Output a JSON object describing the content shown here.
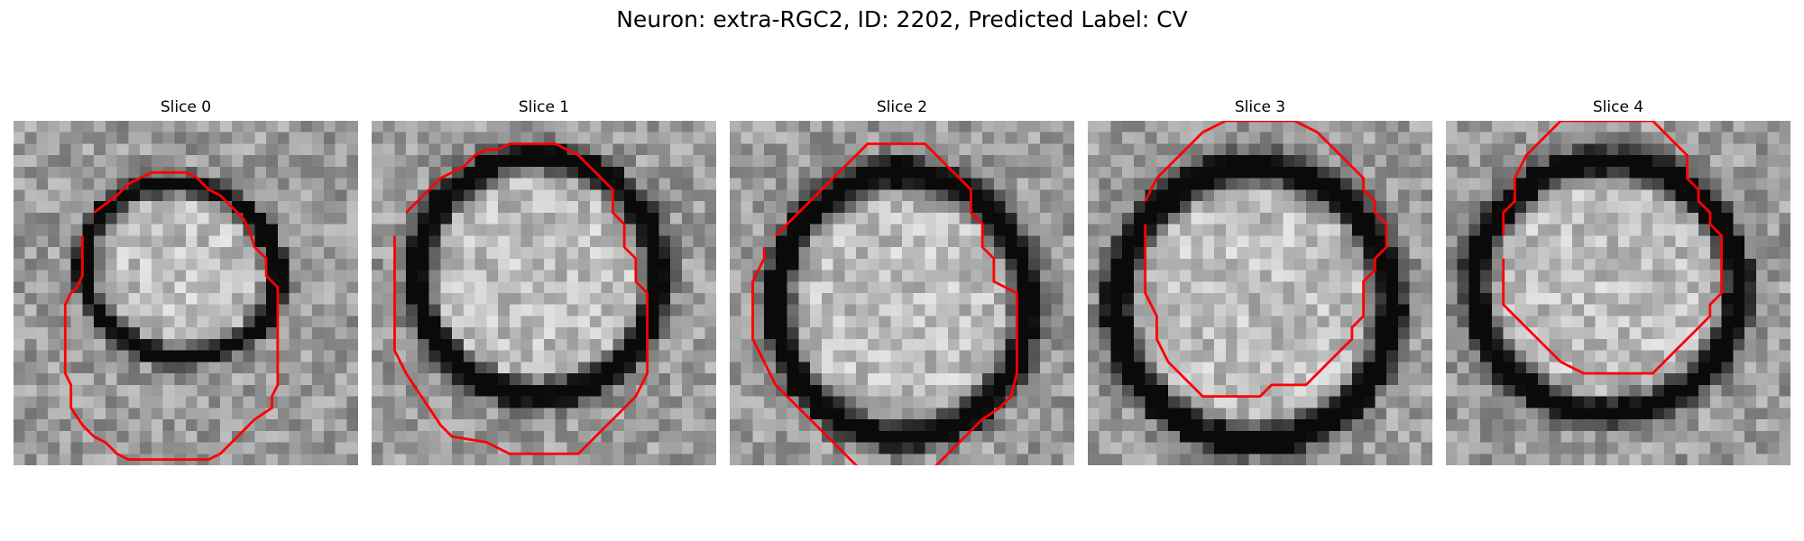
{
  "figure": {
    "title": "Neuron: extra-RGC2, ID: 2202, Predicted Label: CV"
  },
  "panels": [
    {
      "title": "Slice 0",
      "ring": {
        "cx": 14.5,
        "cy": 13.0,
        "rx": 8.5,
        "ry": 7.5,
        "rot": 15
      },
      "contour": [
        [
          7,
          8
        ],
        [
          9,
          6.5
        ],
        [
          10,
          5.5
        ],
        [
          11,
          5
        ],
        [
          12,
          4.5
        ],
        [
          15,
          4.5
        ],
        [
          16,
          5
        ],
        [
          17,
          6
        ],
        [
          18,
          6.5
        ],
        [
          19,
          7.5
        ],
        [
          20,
          8.5
        ],
        [
          20.5,
          9.5
        ],
        [
          21,
          11
        ],
        [
          22,
          12
        ],
        [
          22,
          13.5
        ],
        [
          23,
          14.5
        ],
        [
          23,
          23
        ],
        [
          22.5,
          24
        ],
        [
          22.5,
          25
        ],
        [
          21,
          26
        ],
        [
          20,
          27
        ],
        [
          19,
          28
        ],
        [
          18,
          29
        ],
        [
          17,
          29.5
        ],
        [
          10,
          29.5
        ],
        [
          9,
          29
        ],
        [
          8,
          28
        ],
        [
          7,
          27.5
        ],
        [
          6,
          26.5
        ],
        [
          5,
          25
        ],
        [
          5,
          23
        ],
        [
          4.5,
          22
        ],
        [
          4.5,
          16
        ],
        [
          5,
          15
        ],
        [
          5.5,
          14.5
        ],
        [
          6,
          13.5
        ],
        [
          6,
          10
        ]
      ]
    },
    {
      "title": "Slice 1",
      "ring": {
        "cx": 14.5,
        "cy": 13.5,
        "rx": 10.5,
        "ry": 10.5,
        "rot": 0
      },
      "contour": [
        [
          3,
          8
        ],
        [
          5,
          6
        ],
        [
          6,
          5
        ],
        [
          7,
          4.5
        ],
        [
          8,
          4
        ],
        [
          9,
          3
        ],
        [
          10,
          2.5
        ],
        [
          11,
          2.5
        ],
        [
          12,
          2
        ],
        [
          16,
          2
        ],
        [
          17,
          2.5
        ],
        [
          18,
          3
        ],
        [
          19,
          4
        ],
        [
          20,
          5
        ],
        [
          21,
          6
        ],
        [
          21,
          8
        ],
        [
          22,
          9
        ],
        [
          22,
          11
        ],
        [
          23,
          12
        ],
        [
          23,
          14
        ],
        [
          24,
          15
        ],
        [
          24,
          22
        ],
        [
          23,
          24
        ],
        [
          22,
          25
        ],
        [
          21,
          26
        ],
        [
          20,
          27
        ],
        [
          19,
          28
        ],
        [
          18,
          29
        ],
        [
          12,
          29
        ],
        [
          11,
          28.5
        ],
        [
          10,
          28
        ],
        [
          7,
          27.5
        ],
        [
          6,
          26.5
        ],
        [
          5,
          25
        ],
        [
          4,
          23.5
        ],
        [
          3,
          22
        ],
        [
          2,
          20
        ],
        [
          2,
          10
        ]
      ]
    },
    {
      "title": "Slice 2",
      "ring": {
        "cx": 15.0,
        "cy": 16.0,
        "rx": 11.0,
        "ry": 11.5,
        "rot": 0
      },
      "contour": [
        [
          4,
          10
        ],
        [
          5,
          9
        ],
        [
          6,
          8
        ],
        [
          7,
          7
        ],
        [
          8,
          6
        ],
        [
          9,
          5
        ],
        [
          10,
          4
        ],
        [
          11,
          3
        ],
        [
          12,
          2
        ],
        [
          17,
          2
        ],
        [
          18,
          3
        ],
        [
          19,
          4
        ],
        [
          20,
          5
        ],
        [
          21,
          6
        ],
        [
          21,
          8
        ],
        [
          22,
          9
        ],
        [
          22,
          11
        ],
        [
          23,
          12
        ],
        [
          23,
          14
        ],
        [
          25,
          15
        ],
        [
          25,
          22
        ],
        [
          24.5,
          24
        ],
        [
          23.5,
          25
        ],
        [
          22,
          26
        ],
        [
          21,
          27
        ],
        [
          20,
          28
        ],
        [
          19,
          29
        ],
        [
          18,
          30
        ],
        [
          17,
          31
        ],
        [
          16,
          31.5
        ],
        [
          14,
          31.5
        ],
        [
          12,
          31
        ],
        [
          11,
          30
        ],
        [
          10,
          29
        ],
        [
          9,
          28
        ],
        [
          8,
          27
        ],
        [
          7,
          26
        ],
        [
          6,
          25
        ],
        [
          5,
          24
        ],
        [
          4,
          23
        ],
        [
          3,
          21
        ],
        [
          2,
          19
        ],
        [
          2,
          14
        ],
        [
          3,
          12
        ],
        [
          3,
          11
        ]
      ]
    },
    {
      "title": "Slice 3",
      "ring": {
        "cx": 14.5,
        "cy": 16.0,
        "rx": 12.0,
        "ry": 12.0,
        "rot": 0
      },
      "contour": [
        [
          5,
          7
        ],
        [
          6,
          5
        ],
        [
          7,
          4
        ],
        [
          8,
          3
        ],
        [
          9,
          2
        ],
        [
          10,
          1
        ],
        [
          11,
          0.5
        ],
        [
          12,
          0
        ],
        [
          18,
          0
        ],
        [
          20,
          1
        ],
        [
          21,
          2
        ],
        [
          22,
          3
        ],
        [
          23,
          4
        ],
        [
          24,
          5
        ],
        [
          24,
          6
        ],
        [
          25,
          7
        ],
        [
          25,
          8
        ],
        [
          26,
          9
        ],
        [
          26,
          11
        ],
        [
          25,
          12
        ],
        [
          25,
          13
        ],
        [
          24,
          14
        ],
        [
          24,
          17
        ],
        [
          23,
          18
        ],
        [
          23,
          19
        ],
        [
          22,
          20
        ],
        [
          21,
          21
        ],
        [
          20,
          22
        ],
        [
          19,
          23
        ],
        [
          16,
          23
        ],
        [
          15,
          24
        ],
        [
          13,
          24
        ],
        [
          12,
          24
        ],
        [
          11,
          24
        ],
        [
          10,
          24
        ],
        [
          9,
          23
        ],
        [
          8,
          22
        ],
        [
          7,
          21
        ],
        [
          6,
          19
        ],
        [
          6,
          17
        ],
        [
          5,
          15
        ],
        [
          5,
          13
        ],
        [
          5,
          11
        ],
        [
          5,
          9
        ]
      ]
    },
    {
      "title": "Slice 4",
      "ring": {
        "cx": 14.0,
        "cy": 14.5,
        "rx": 11.5,
        "ry": 11.0,
        "rot": 0
      },
      "contour": [
        [
          5,
          10
        ],
        [
          5,
          8
        ],
        [
          6,
          7
        ],
        [
          6,
          5
        ],
        [
          7,
          3
        ],
        [
          8,
          2
        ],
        [
          9,
          1
        ],
        [
          10,
          0
        ],
        [
          18,
          0
        ],
        [
          19,
          1
        ],
        [
          20,
          2
        ],
        [
          21,
          3
        ],
        [
          21,
          5
        ],
        [
          22,
          6
        ],
        [
          22,
          7
        ],
        [
          23,
          8
        ],
        [
          23,
          9
        ],
        [
          24,
          10
        ],
        [
          24,
          15
        ],
        [
          23,
          16
        ],
        [
          23,
          17
        ],
        [
          22,
          18
        ],
        [
          21,
          19
        ],
        [
          20,
          20
        ],
        [
          19,
          21
        ],
        [
          18,
          22
        ],
        [
          12,
          22
        ],
        [
          10,
          21
        ],
        [
          9,
          20
        ],
        [
          8,
          19
        ],
        [
          7,
          18
        ],
        [
          6,
          17
        ],
        [
          5,
          16
        ],
        [
          5,
          14
        ],
        [
          5,
          12
        ]
      ]
    }
  ],
  "colors": {
    "contour": "#ff0000"
  }
}
